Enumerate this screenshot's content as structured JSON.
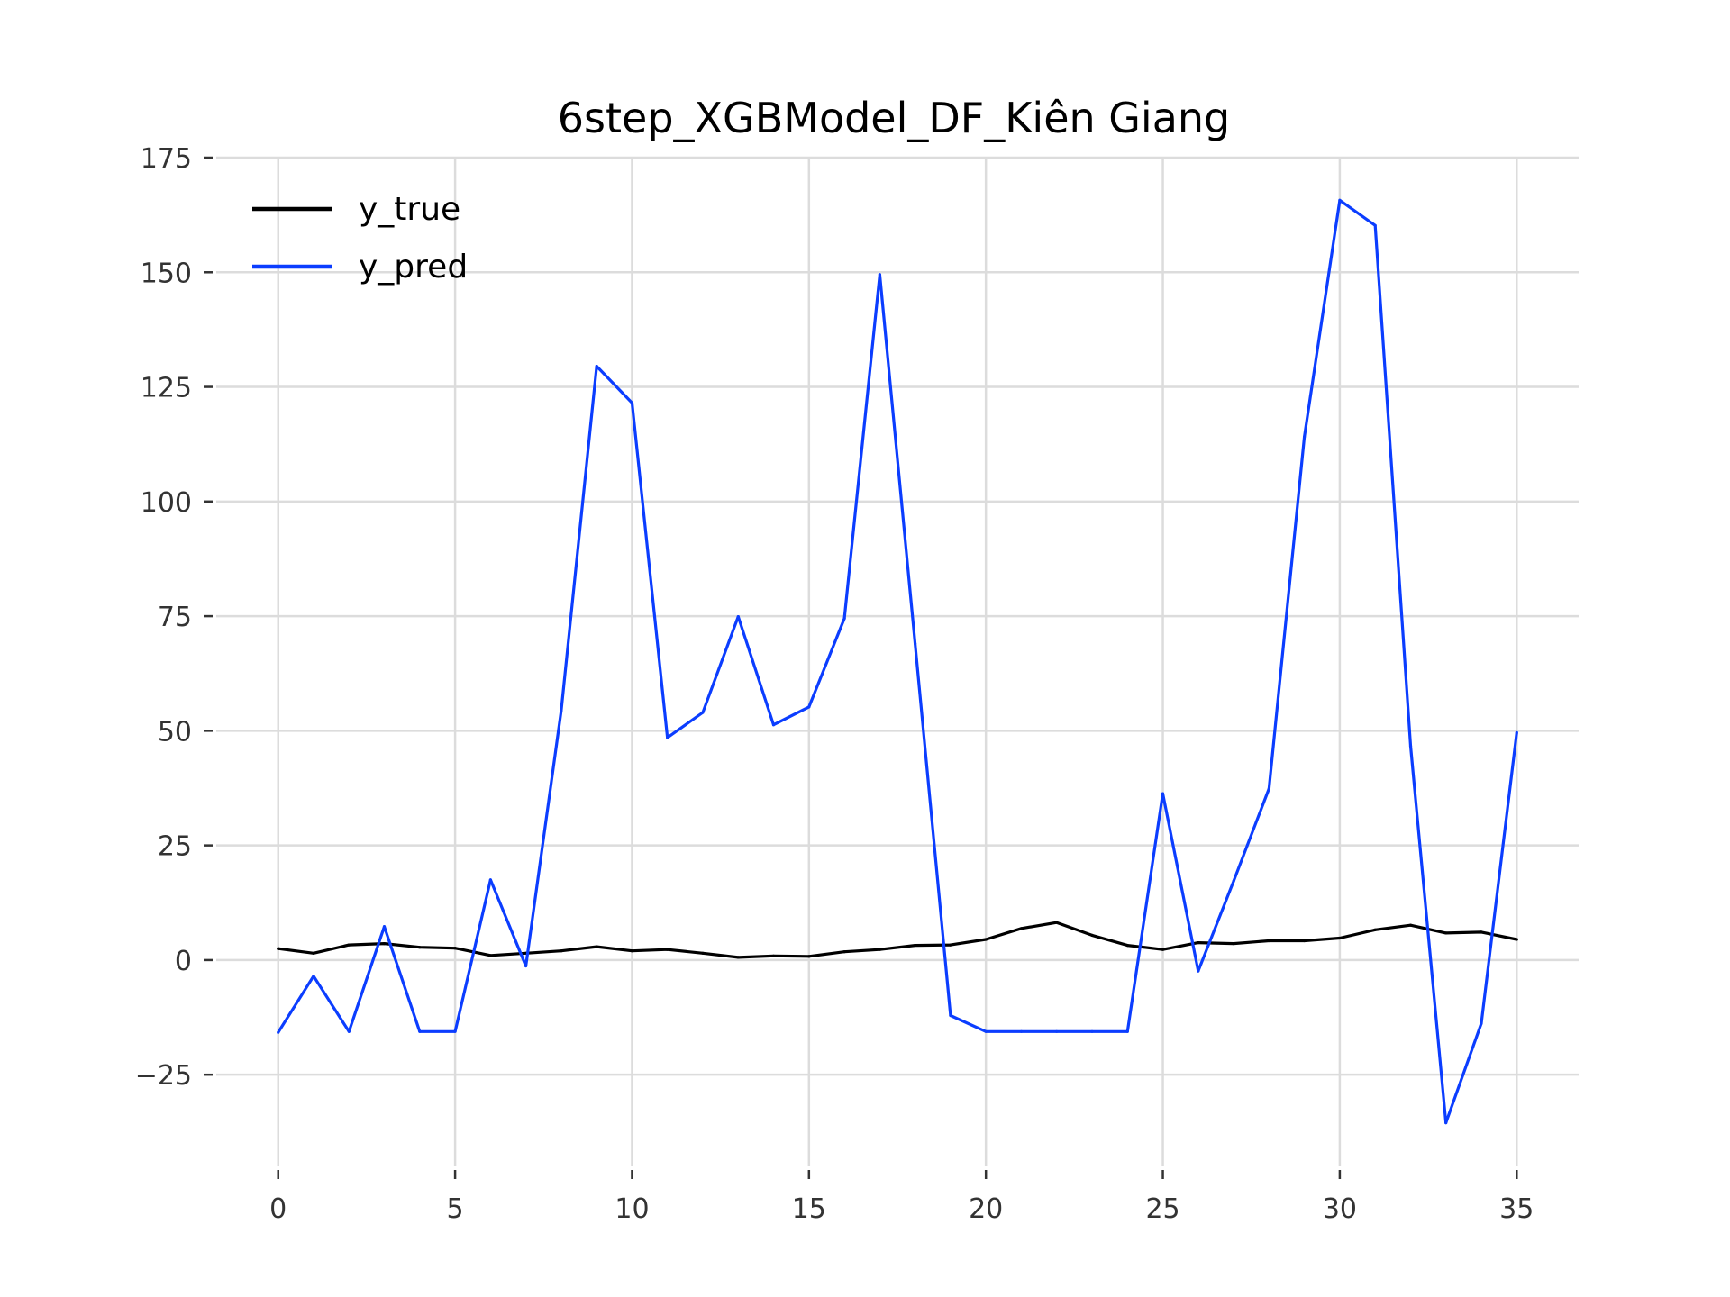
{
  "chart_data": {
    "type": "line",
    "title": "6step_XGBModel_DF_Kiên Giang",
    "xlabel": "",
    "ylabel": "",
    "xlim": [
      -1.75,
      36.75
    ],
    "ylim": [
      -45,
      175
    ],
    "x_ticks": [
      0,
      5,
      10,
      15,
      20,
      25,
      30,
      35
    ],
    "y_ticks": [
      -25,
      0,
      25,
      50,
      75,
      100,
      125,
      150,
      175
    ],
    "x_tick_labels": [
      "0",
      "5",
      "10",
      "15",
      "20",
      "25",
      "30",
      "35"
    ],
    "y_tick_labels": [
      "−25",
      "0",
      "25",
      "50",
      "75",
      "100",
      "125",
      "150",
      "175"
    ],
    "grid": true,
    "legend_position": "top-left",
    "x": [
      0,
      1,
      2,
      3,
      4,
      5,
      6,
      7,
      8,
      9,
      10,
      11,
      12,
      13,
      14,
      15,
      16,
      17,
      18,
      19,
      20,
      21,
      22,
      23,
      24,
      25,
      26,
      27,
      28,
      29,
      30,
      31,
      32,
      33,
      34,
      35
    ],
    "series": [
      {
        "name": "y_true",
        "color": "#000000",
        "values": [
          2.5,
          1.5,
          3.3,
          3.6,
          2.8,
          2.6,
          1.0,
          1.5,
          2.0,
          2.9,
          2.0,
          2.3,
          1.5,
          0.6,
          0.9,
          0.8,
          1.8,
          2.3,
          3.2,
          3.3,
          4.5,
          6.9,
          8.2,
          5.4,
          3.2,
          2.3,
          3.8,
          3.6,
          4.2,
          4.2,
          4.8,
          6.6,
          7.6,
          5.9,
          6.1,
          4.5
        ]
      },
      {
        "name": "y_pred",
        "color": "#0b3dff",
        "values": [
          -15.8,
          -3.5,
          -15.6,
          7.3,
          -15.6,
          -15.6,
          17.5,
          -1.3,
          54.5,
          129.5,
          121.5,
          48.5,
          54.0,
          74.9,
          51.3,
          55.2,
          74.5,
          149.5,
          69.0,
          -12.1,
          -15.6,
          -15.6,
          -15.6,
          -15.6,
          -15.6,
          36.3,
          -2.4,
          17.2,
          37.4,
          114.1,
          165.7,
          160.2,
          46.7,
          -35.5,
          -13.8,
          49.6
        ]
      }
    ]
  }
}
